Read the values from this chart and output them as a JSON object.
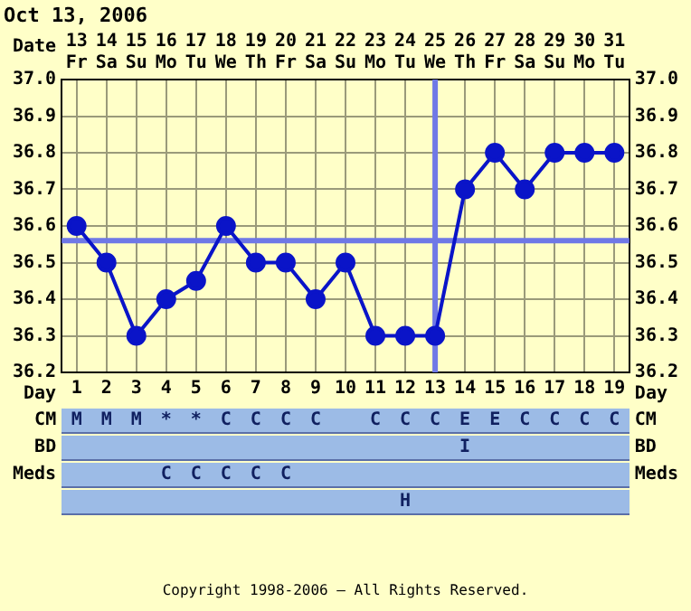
{
  "chart_data": {
    "type": "line",
    "title": "Oct 13, 2006",
    "xlabel": "Date",
    "x2label": "Day",
    "categories": [
      "13 Fr",
      "14 Sa",
      "15 Su",
      "16 Mo",
      "17 Tu",
      "18 We",
      "19 Th",
      "20 Fr",
      "21 Sa",
      "22 Su",
      "23 Mo",
      "24 Tu",
      "25 We",
      "26 Th",
      "27 Fr",
      "28 Sa",
      "29 Su",
      "30 Mo",
      "31 Tu"
    ],
    "series": [
      {
        "color": "#0a14c8",
        "values": [
          36.6,
          36.5,
          36.3,
          36.4,
          36.45,
          36.6,
          36.5,
          36.5,
          36.4,
          36.5,
          36.3,
          36.3,
          36.3,
          36.7,
          36.8,
          36.7,
          36.8,
          36.8,
          36.8
        ]
      }
    ],
    "x2lim": [
      0.5,
      19.5
    ],
    "x2ticks": [
      1,
      2,
      3,
      4,
      5,
      6,
      7,
      8,
      9,
      10,
      11,
      12,
      13,
      14,
      15,
      16,
      17,
      18,
      19
    ],
    "ylim": [
      36.2,
      37.0
    ],
    "yticks": [
      36.2,
      36.3,
      36.4,
      36.5,
      36.6,
      36.7,
      36.8,
      36.9,
      {
        "value": 37.0,
        "label": "37.0"
      }
    ],
    "y2lim": [
      36.2,
      37.0
    ],
    "y2ticks": [
      36.2,
      36.3,
      36.4,
      36.5,
      36.6,
      36.7,
      36.8,
      36.9,
      {
        "value": 37.0,
        "label": "37.0"
      }
    ],
    "ref_lines": [
      {
        "axis": "y",
        "value": 36.56,
        "color": "#6f78e6"
      },
      {
        "axis": "x",
        "value": "25 We",
        "color": "#6f78e6"
      }
    ],
    "grid": true,
    "marker": "circle",
    "line_style": "solid",
    "legend": false,
    "annotations": [
      "CM",
      "M M M * * C C C C  C C C E E C C C C",
      "BD",
      "             I     ",
      "Meds",
      "   C C C C C           ",
      "           H       ",
      "Copyright 1998-2006 – All Rights Reserved."
    ]
  }
}
